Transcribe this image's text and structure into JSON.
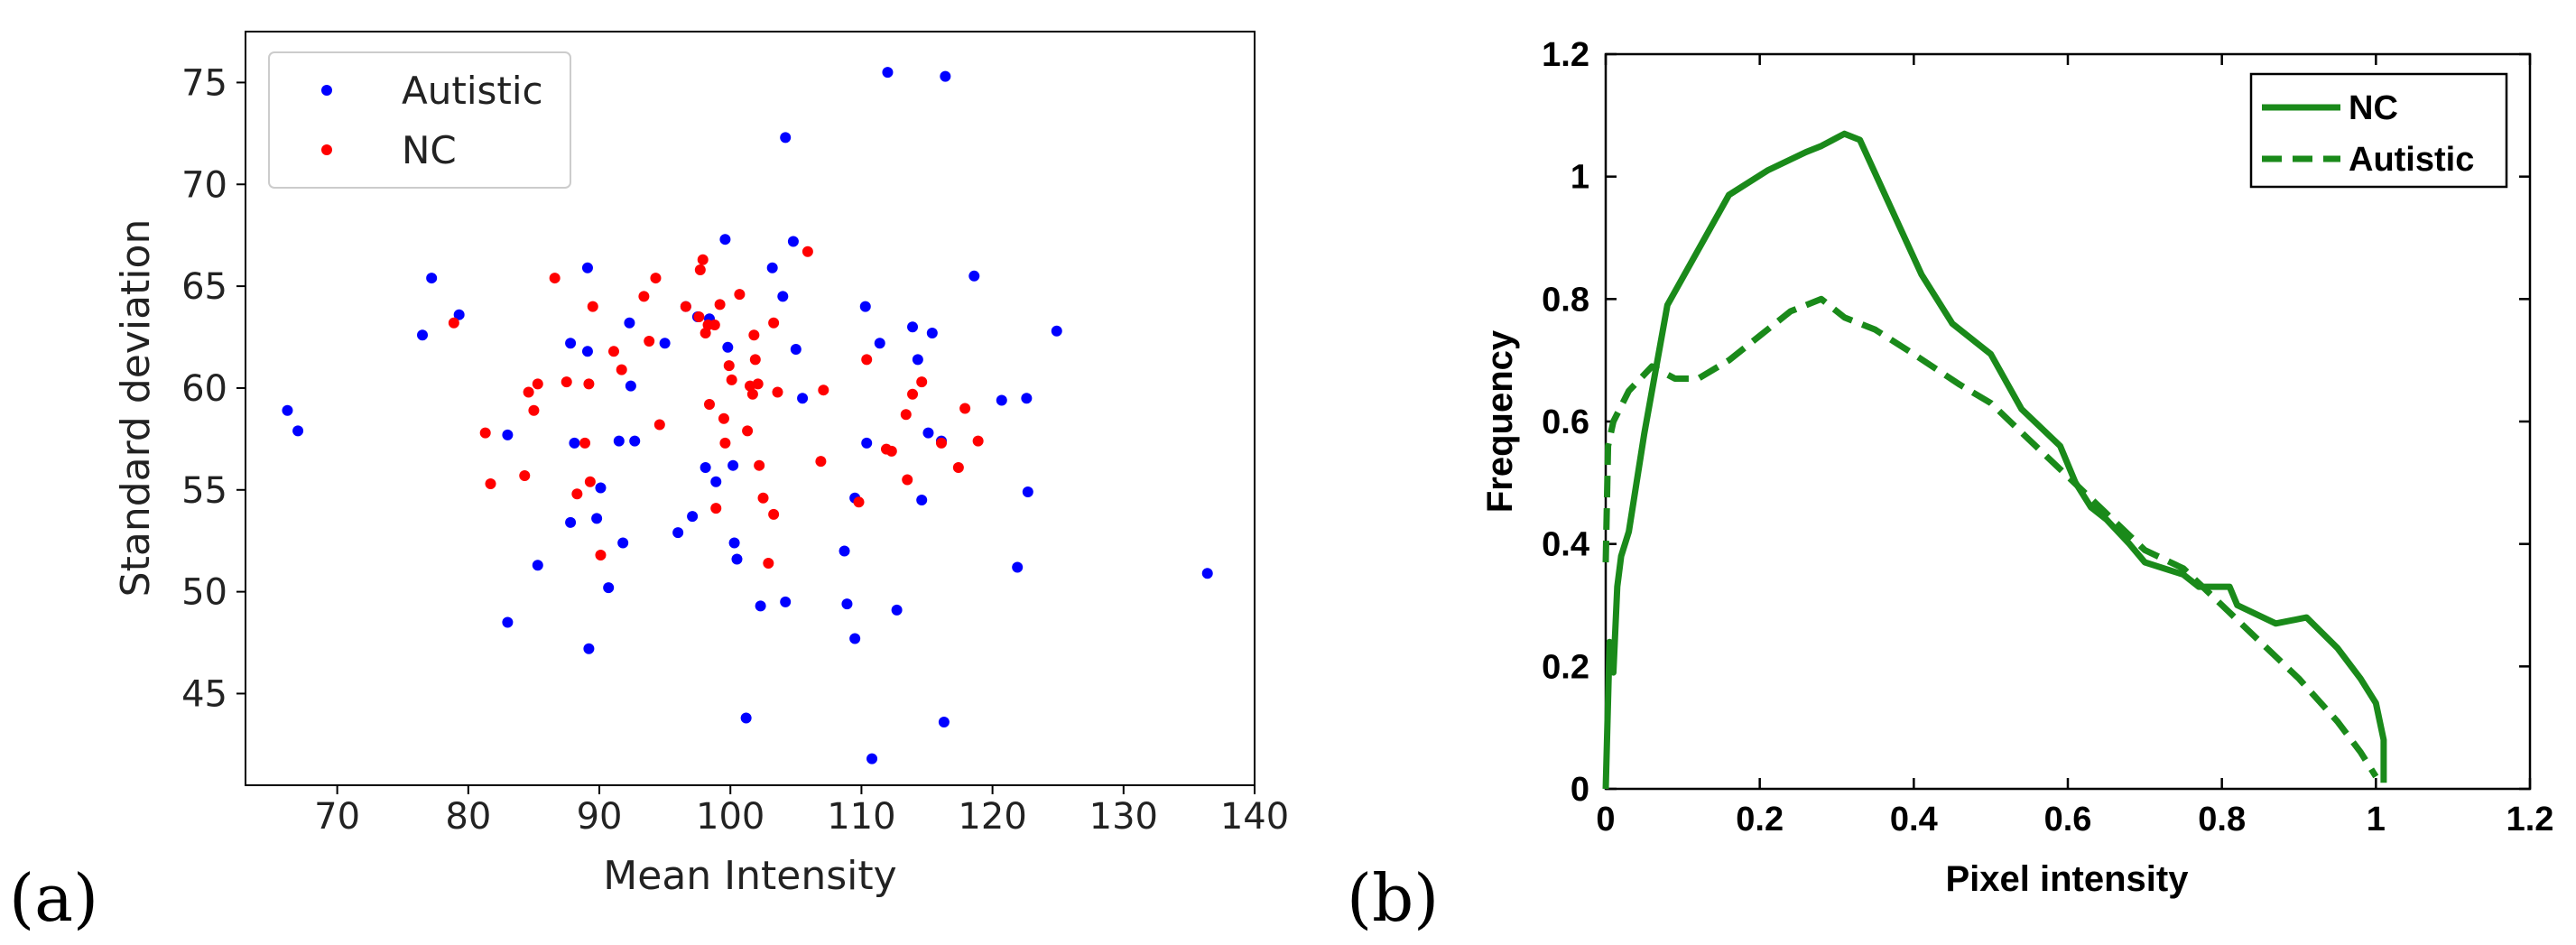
{
  "panels": {
    "a": {
      "tag": "(a)"
    },
    "b": {
      "tag": "(b)"
    }
  },
  "chart_data": [
    {
      "id": "a",
      "type": "scatter",
      "xlabel": "Mean Intensity",
      "ylabel": "Standard deviation",
      "xlim": [
        63,
        140
      ],
      "ylim": [
        40.5,
        77.5
      ],
      "xticks": [
        70,
        80,
        90,
        100,
        110,
        120,
        130,
        140
      ],
      "yticks": [
        45,
        50,
        55,
        60,
        65,
        70,
        75
      ],
      "legend_position": "top-left",
      "series": [
        {
          "name": "Autistic",
          "color": "#0000ff",
          "points": [
            [
              66.2,
              58.9
            ],
            [
              67,
              57.9
            ],
            [
              76.5,
              62.6
            ],
            [
              77.2,
              65.4
            ],
            [
              79.3,
              63.6
            ],
            [
              83,
              57.7
            ],
            [
              83,
              48.5
            ],
            [
              85.3,
              51.3
            ],
            [
              87.8,
              62.2
            ],
            [
              87.8,
              53.4
            ],
            [
              88.1,
              57.3
            ],
            [
              89.1,
              65.9
            ],
            [
              89.1,
              61.8
            ],
            [
              89.8,
              53.6
            ],
            [
              89.2,
              47.2
            ],
            [
              90.1,
              55.1
            ],
            [
              90.7,
              50.2
            ],
            [
              91.5,
              57.4
            ],
            [
              91.8,
              52.4
            ],
            [
              92.3,
              63.2
            ],
            [
              92.4,
              60.1
            ],
            [
              92.7,
              57.4
            ],
            [
              95,
              62.2
            ],
            [
              96,
              52.9
            ],
            [
              96.6,
              64
            ],
            [
              97.1,
              53.7
            ],
            [
              97.5,
              63.5
            ],
            [
              98.1,
              56.1
            ],
            [
              98.4,
              63.4
            ],
            [
              98.9,
              55.4
            ],
            [
              99.6,
              67.3
            ],
            [
              99.8,
              62
            ],
            [
              100.2,
              56.2
            ],
            [
              100.3,
              52.4
            ],
            [
              100.5,
              51.6
            ],
            [
              101.2,
              43.8
            ],
            [
              102.3,
              49.3
            ],
            [
              103.2,
              65.9
            ],
            [
              104,
              64.5
            ],
            [
              104.2,
              72.3
            ],
            [
              104.2,
              49.5
            ],
            [
              104.8,
              67.2
            ],
            [
              105,
              61.9
            ],
            [
              105.5,
              59.5
            ],
            [
              108.7,
              52
            ],
            [
              108.9,
              49.4
            ],
            [
              109.5,
              47.7
            ],
            [
              109.5,
              54.6
            ],
            [
              110.3,
              64
            ],
            [
              110.4,
              57.3
            ],
            [
              110.8,
              41.8
            ],
            [
              111.4,
              62.2
            ],
            [
              112,
              75.5
            ],
            [
              112.7,
              49.1
            ],
            [
              113.9,
              63
            ],
            [
              114.3,
              61.4
            ],
            [
              114.6,
              54.5
            ],
            [
              115.1,
              57.8
            ],
            [
              115.4,
              62.7
            ],
            [
              116.1,
              57.4
            ],
            [
              116.3,
              43.6
            ],
            [
              116.4,
              75.3
            ],
            [
              118.6,
              65.5
            ],
            [
              120.7,
              59.4
            ],
            [
              121.9,
              51.2
            ],
            [
              122.6,
              59.5
            ],
            [
              122.7,
              54.9
            ],
            [
              124.9,
              62.8
            ],
            [
              136.4,
              50.9
            ]
          ]
        },
        {
          "name": "NC",
          "color": "#ff0000",
          "points": [
            [
              78.9,
              63.2
            ],
            [
              81.3,
              57.8
            ],
            [
              81.7,
              55.3
            ],
            [
              84.3,
              55.7
            ],
            [
              84.6,
              59.8
            ],
            [
              85,
              58.9
            ],
            [
              85.3,
              60.2
            ],
            [
              86.6,
              65.4
            ],
            [
              87.5,
              60.3
            ],
            [
              88.3,
              54.8
            ],
            [
              88.9,
              57.3
            ],
            [
              89.2,
              60.2
            ],
            [
              89.3,
              55.4
            ],
            [
              89.5,
              64
            ],
            [
              90.1,
              51.8
            ],
            [
              91.1,
              61.8
            ],
            [
              91.7,
              60.9
            ],
            [
              93.4,
              64.5
            ],
            [
              93.8,
              62.3
            ],
            [
              94.3,
              65.4
            ],
            [
              94.6,
              58.2
            ],
            [
              96.6,
              64
            ],
            [
              97.6,
              63.5
            ],
            [
              97.7,
              65.8
            ],
            [
              97.9,
              66.3
            ],
            [
              98.1,
              62.7
            ],
            [
              98.3,
              63.1
            ],
            [
              98.4,
              59.2
            ],
            [
              98.8,
              63.1
            ],
            [
              98.9,
              54.1
            ],
            [
              99.2,
              64.1
            ],
            [
              99.5,
              58.5
            ],
            [
              99.6,
              57.3
            ],
            [
              99.9,
              61.1
            ],
            [
              100.1,
              60.4
            ],
            [
              100.7,
              64.6
            ],
            [
              101.3,
              57.9
            ],
            [
              101.5,
              60.1
            ],
            [
              101.7,
              59.7
            ],
            [
              101.8,
              62.6
            ],
            [
              101.9,
              61.4
            ],
            [
              102.1,
              60.2
            ],
            [
              102.2,
              56.2
            ],
            [
              102.5,
              54.6
            ],
            [
              102.9,
              51.4
            ],
            [
              103.3,
              63.2
            ],
            [
              103.3,
              53.8
            ],
            [
              103.6,
              59.8
            ],
            [
              105.9,
              66.7
            ],
            [
              106.9,
              56.4
            ],
            [
              107.1,
              59.9
            ],
            [
              109.8,
              54.4
            ],
            [
              110.4,
              61.4
            ],
            [
              111.9,
              57
            ],
            [
              112.3,
              56.9
            ],
            [
              113.4,
              58.7
            ],
            [
              113.5,
              55.5
            ],
            [
              113.9,
              59.7
            ],
            [
              114.6,
              60.3
            ],
            [
              116.1,
              57.3
            ],
            [
              117.4,
              56.1
            ],
            [
              117.9,
              59
            ],
            [
              118.9,
              57.4
            ]
          ]
        }
      ]
    },
    {
      "id": "b",
      "type": "line",
      "xlabel": "Pixel intensity",
      "ylabel": "Frequency",
      "xlim": [
        0,
        1.2
      ],
      "ylim": [
        0,
        1.2
      ],
      "xticks": [
        "0",
        "0.2",
        "0.4",
        "0.6",
        "0.8",
        "1",
        "1.2"
      ],
      "yticks": [
        "0",
        "0.2",
        "0.4",
        "0.6",
        "0.8",
        "1",
        "1.2"
      ],
      "legend_position": "top-right",
      "series": [
        {
          "name": "NC",
          "color": "#1a8a1a",
          "style": "solid",
          "x": [
            0,
            0.005,
            0.01,
            0.015,
            0.02,
            0.03,
            0.05,
            0.08,
            0.16,
            0.21,
            0.26,
            0.28,
            0.31,
            0.33,
            0.37,
            0.41,
            0.45,
            0.5,
            0.54,
            0.59,
            0.61,
            0.63,
            0.65,
            0.68,
            0.7,
            0.75,
            0.77,
            0.81,
            0.82,
            0.87,
            0.91,
            0.95,
            0.98,
            1.0,
            1.01,
            1.01
          ],
          "y": [
            0,
            0.24,
            0.19,
            0.33,
            0.38,
            0.42,
            0.58,
            0.79,
            0.97,
            1.01,
            1.04,
            1.05,
            1.07,
            1.06,
            0.95,
            0.84,
            0.76,
            0.71,
            0.62,
            0.56,
            0.5,
            0.46,
            0.44,
            0.4,
            0.37,
            0.35,
            0.33,
            0.33,
            0.3,
            0.27,
            0.28,
            0.23,
            0.18,
            0.14,
            0.08,
            0.01
          ]
        },
        {
          "name": "Autistic",
          "color": "#1a8a1a",
          "style": "dashed",
          "x": [
            0,
            0.003,
            0.01,
            0.03,
            0.06,
            0.09,
            0.12,
            0.16,
            0.2,
            0.24,
            0.28,
            0.31,
            0.35,
            0.4,
            0.46,
            0.5,
            0.55,
            0.6,
            0.65,
            0.7,
            0.75,
            0.8,
            0.85,
            0.9,
            0.95,
            0.98,
            1.0
          ],
          "y": [
            0.37,
            0.56,
            0.6,
            0.65,
            0.69,
            0.67,
            0.67,
            0.7,
            0.74,
            0.78,
            0.8,
            0.77,
            0.75,
            0.71,
            0.66,
            0.63,
            0.57,
            0.51,
            0.45,
            0.39,
            0.36,
            0.3,
            0.24,
            0.18,
            0.11,
            0.06,
            0.02
          ]
        }
      ]
    }
  ]
}
